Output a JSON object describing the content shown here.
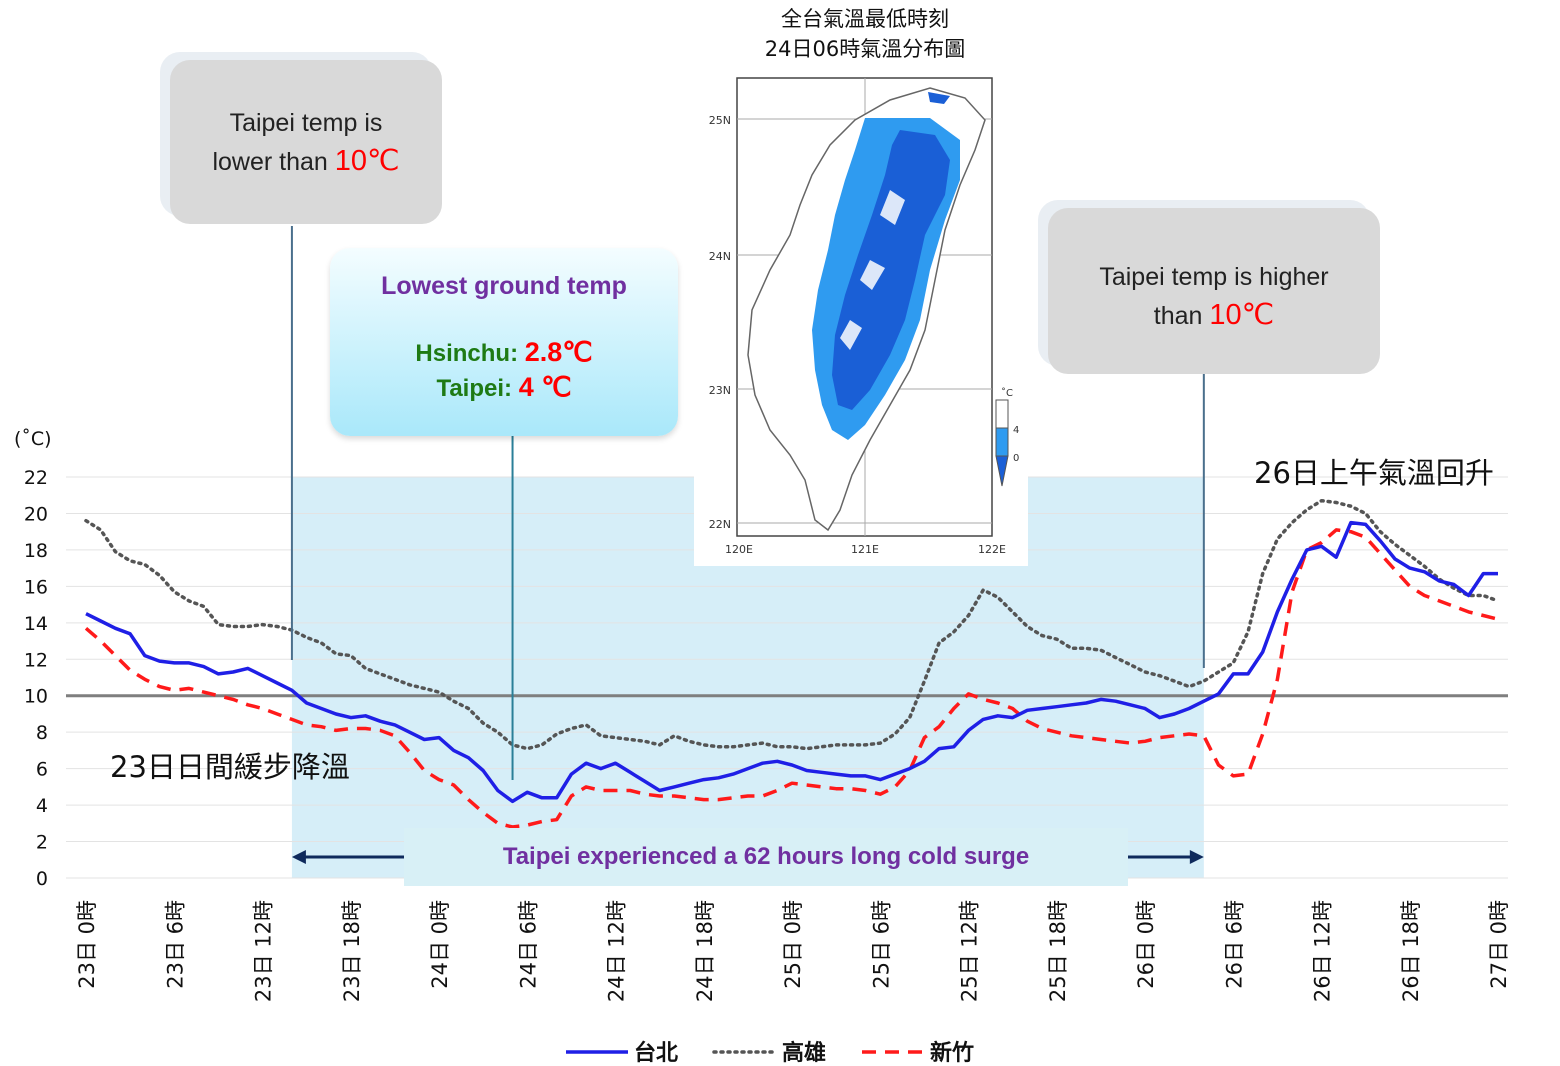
{
  "colors": {
    "taipei": "#1f1fe6",
    "kaohsiung": "#555555",
    "hsinchu": "#ff1a1a",
    "accent_red": "#ff0000",
    "purple": "#7030a0",
    "green": "#1e7a14",
    "shade": "#d6eef8"
  },
  "chart_data": {
    "type": "line",
    "ylabel": "(˚C)",
    "ylim": [
      0,
      22
    ],
    "yticks": [
      0,
      2,
      4,
      6,
      8,
      10,
      12,
      14,
      16,
      18,
      20,
      22
    ],
    "x_range_hours": [
      0,
      96
    ],
    "x_tick_labels": [
      "23日 0時",
      "23日 6時",
      "23日 12時",
      "23日 18時",
      "24日 0時",
      "24日 6時",
      "24日 12時",
      "24日 18時",
      "25日 0時",
      "25日 6時",
      "25日 12時",
      "25日 18時",
      "26日 0時",
      "26日 6時",
      "26日 12時",
      "26日 18時",
      "27日 0時"
    ],
    "x_tick_hours": [
      0,
      6,
      12,
      18,
      24,
      30,
      36,
      42,
      48,
      54,
      60,
      66,
      72,
      78,
      84,
      90,
      96
    ],
    "threshold": 10,
    "cold_surge_hours": [
      14,
      76
    ],
    "legend": [
      "台北",
      "高雄",
      "新竹"
    ],
    "series": [
      {
        "name": "台北",
        "style": "solid",
        "x": [
          0,
          1,
          2,
          3,
          4,
          5,
          6,
          7,
          8,
          9,
          10,
          11,
          12,
          13,
          14,
          15,
          16,
          17,
          18,
          19,
          20,
          21,
          22,
          23,
          24,
          25,
          26,
          27,
          28,
          29,
          30,
          31,
          32,
          33,
          34,
          35,
          36,
          37,
          38,
          39,
          40,
          41,
          42,
          43,
          44,
          45,
          46,
          47,
          48,
          49,
          50,
          51,
          52,
          53,
          54,
          55,
          56,
          57,
          58,
          59,
          60,
          61,
          62,
          63,
          64,
          65,
          66,
          67,
          68,
          69,
          70,
          71,
          72,
          73,
          74,
          75,
          76,
          77,
          78,
          79,
          80,
          81,
          82,
          83,
          84,
          85,
          86,
          87,
          88,
          89,
          90,
          91,
          92,
          93,
          94,
          95,
          96
        ],
        "values": [
          14.5,
          14.1,
          13.7,
          13.4,
          12.2,
          11.9,
          11.8,
          11.8,
          11.6,
          11.2,
          11.3,
          11.5,
          11.1,
          10.7,
          10.3,
          9.6,
          9.3,
          9.0,
          8.8,
          8.9,
          8.6,
          8.4,
          8.0,
          7.6,
          7.7,
          7.0,
          6.6,
          5.9,
          4.8,
          4.2,
          4.7,
          4.4,
          4.4,
          5.7,
          6.3,
          6.0,
          6.3,
          5.8,
          5.3,
          4.8,
          5.0,
          5.2,
          5.4,
          5.5,
          5.7,
          6.0,
          6.3,
          6.4,
          6.2,
          5.9,
          5.8,
          5.7,
          5.6,
          5.6,
          5.4,
          5.7,
          6.0,
          6.4,
          7.1,
          7.2,
          8.1,
          8.7,
          8.9,
          8.8,
          9.2,
          9.3,
          9.4,
          9.5,
          9.6,
          9.8,
          9.7,
          9.5,
          9.3,
          8.8,
          9.0,
          9.3,
          9.7,
          10.1,
          11.2,
          11.2,
          12.4,
          14.6,
          16.4,
          18.0,
          18.2,
          17.6,
          19.5,
          19.4,
          18.5,
          17.5,
          17.0,
          16.8,
          16.3,
          16.1,
          15.5,
          16.7,
          16.7
        ]
      },
      {
        "name": "高雄",
        "style": "dotted",
        "x": [
          0,
          1,
          2,
          3,
          4,
          5,
          6,
          7,
          8,
          9,
          10,
          11,
          12,
          13,
          14,
          15,
          16,
          17,
          18,
          19,
          20,
          21,
          22,
          23,
          24,
          25,
          26,
          27,
          28,
          29,
          30,
          31,
          32,
          33,
          34,
          35,
          36,
          37,
          38,
          39,
          40,
          41,
          42,
          43,
          44,
          45,
          46,
          47,
          48,
          49,
          50,
          51,
          52,
          53,
          54,
          55,
          56,
          57,
          58,
          59,
          60,
          61,
          62,
          63,
          64,
          65,
          66,
          67,
          68,
          69,
          70,
          71,
          72,
          73,
          74,
          75,
          76,
          77,
          78,
          79,
          80,
          81,
          82,
          83,
          84,
          85,
          86,
          87,
          88,
          89,
          90,
          91,
          92,
          93,
          94,
          95,
          96
        ],
        "values": [
          19.6,
          19.1,
          17.9,
          17.4,
          17.2,
          16.6,
          15.7,
          15.2,
          14.9,
          13.9,
          13.8,
          13.8,
          13.9,
          13.8,
          13.6,
          13.2,
          12.9,
          12.3,
          12.2,
          11.5,
          11.2,
          10.9,
          10.6,
          10.4,
          10.2,
          9.7,
          9.3,
          8.5,
          8.0,
          7.3,
          7.1,
          7.3,
          7.9,
          8.2,
          8.4,
          7.8,
          7.7,
          7.6,
          7.5,
          7.3,
          7.8,
          7.5,
          7.3,
          7.2,
          7.2,
          7.3,
          7.4,
          7.2,
          7.2,
          7.1,
          7.2,
          7.3,
          7.3,
          7.3,
          7.4,
          7.9,
          8.8,
          10.8,
          12.9,
          13.5,
          14.4,
          15.8,
          15.4,
          14.6,
          13.8,
          13.3,
          13.1,
          12.6,
          12.6,
          12.5,
          12.1,
          11.7,
          11.3,
          11.1,
          10.8,
          10.5,
          10.8,
          11.3,
          11.8,
          13.5,
          16.7,
          18.6,
          19.5,
          20.2,
          20.7,
          20.6,
          20.4,
          20.0,
          19.0,
          18.3,
          17.7,
          17.1,
          16.4,
          15.9,
          15.5,
          15.5,
          15.2
        ]
      },
      {
        "name": "新竹",
        "style": "dashed",
        "x": [
          0,
          1,
          2,
          3,
          4,
          5,
          6,
          7,
          8,
          9,
          10,
          11,
          12,
          13,
          14,
          15,
          16,
          17,
          18,
          19,
          20,
          21,
          22,
          23,
          24,
          25,
          26,
          27,
          28,
          29,
          30,
          31,
          32,
          33,
          34,
          35,
          36,
          37,
          38,
          39,
          40,
          41,
          42,
          43,
          44,
          45,
          46,
          47,
          48,
          49,
          50,
          51,
          52,
          53,
          54,
          55,
          56,
          57,
          58,
          59,
          60,
          61,
          62,
          63,
          64,
          65,
          66,
          67,
          68,
          69,
          70,
          71,
          72,
          73,
          74,
          75,
          76,
          77,
          78,
          79,
          80,
          81,
          82,
          83,
          84,
          85,
          86,
          87,
          88,
          89,
          90,
          91,
          92,
          93,
          94,
          95,
          96
        ],
        "values": [
          13.7,
          13.0,
          12.2,
          11.4,
          10.9,
          10.5,
          10.3,
          10.4,
          10.2,
          10.0,
          9.8,
          9.5,
          9.3,
          9.0,
          8.7,
          8.4,
          8.3,
          8.1,
          8.2,
          8.2,
          8.1,
          7.8,
          6.9,
          5.9,
          5.4,
          5.1,
          4.3,
          3.6,
          3.0,
          2.8,
          2.9,
          3.1,
          3.2,
          4.5,
          5.0,
          4.8,
          4.8,
          4.8,
          4.6,
          4.5,
          4.5,
          4.4,
          4.3,
          4.3,
          4.4,
          4.5,
          4.5,
          4.8,
          5.2,
          5.1,
          5.0,
          4.9,
          4.9,
          4.8,
          4.6,
          5.0,
          5.9,
          7.7,
          8.3,
          9.3,
          10.1,
          9.8,
          9.6,
          9.3,
          8.6,
          8.2,
          8.0,
          7.8,
          7.7,
          7.6,
          7.5,
          7.4,
          7.5,
          7.7,
          7.8,
          7.9,
          7.8,
          6.2,
          5.6,
          5.7,
          7.9,
          10.9,
          15.7,
          18.0,
          18.4,
          19.1,
          19.0,
          18.7,
          17.8,
          16.9,
          16.0,
          15.5,
          15.2,
          14.9,
          14.6,
          14.4,
          14.2
        ]
      }
    ]
  },
  "callouts": {
    "lower": {
      "line1": "Taipei temp is",
      "line2": "lower than ",
      "temp": "10℃"
    },
    "higher": {
      "line1": "Taipei temp is higher",
      "line2": "than ",
      "temp": "10℃"
    },
    "lowest": {
      "title": "Lowest ground temp",
      "hsinchu_label": "Hsinchu: ",
      "hsinchu_value": "2.8℃",
      "taipei_label": "Taipei: ",
      "taipei_value": "4 ℃"
    }
  },
  "annotations": {
    "day23": "23日日間緩步降溫",
    "day26": "26日上午氣溫回升",
    "surge": "Taipei experienced a 62 hours long cold surge"
  },
  "map": {
    "title_line1": "全台氣溫最低時刻",
    "title_line2": "24日06時氣溫分布圖",
    "lat_labels": [
      "25N",
      "24N",
      "23N",
      "22N"
    ],
    "lon_labels": [
      "120E",
      "121E",
      "122E"
    ],
    "colorbar_unit": "˚C",
    "colorbar_labels": [
      "4",
      "0"
    ],
    "colors": {
      "cold": "#1a5fd6",
      "cool": "#2f9bf0",
      "coast_fill": "#ffffff",
      "outline": "#555555"
    }
  }
}
